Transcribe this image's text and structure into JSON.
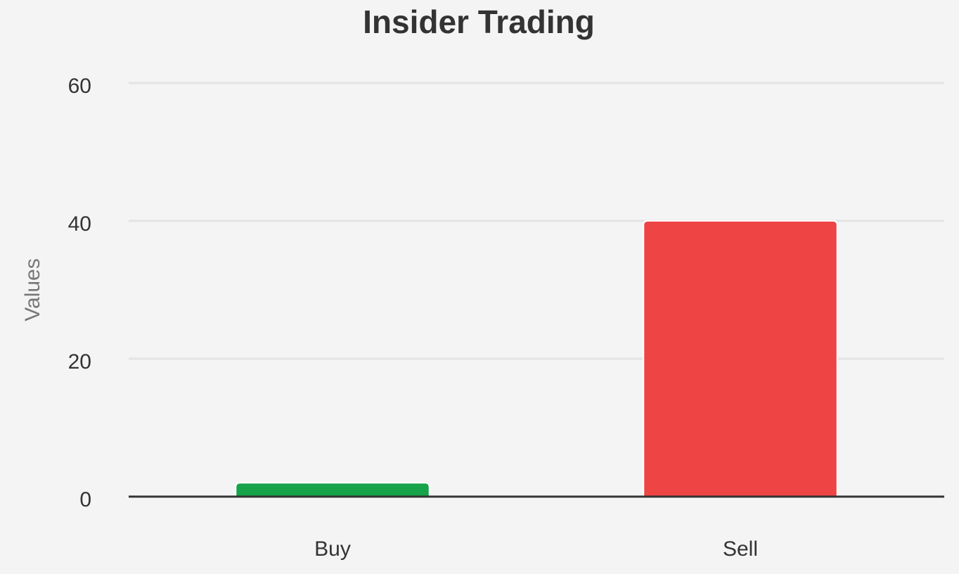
{
  "chart_data": {
    "type": "bar",
    "title": "Insider Trading",
    "y_label": "Values",
    "categories": [
      "Buy",
      "Sell"
    ],
    "values": [
      2,
      40
    ],
    "colors": [
      "#16a34a",
      "#ef4444"
    ],
    "ylim": [
      0,
      60
    ],
    "yticks": [
      0,
      20,
      40,
      60
    ],
    "grid": true
  }
}
